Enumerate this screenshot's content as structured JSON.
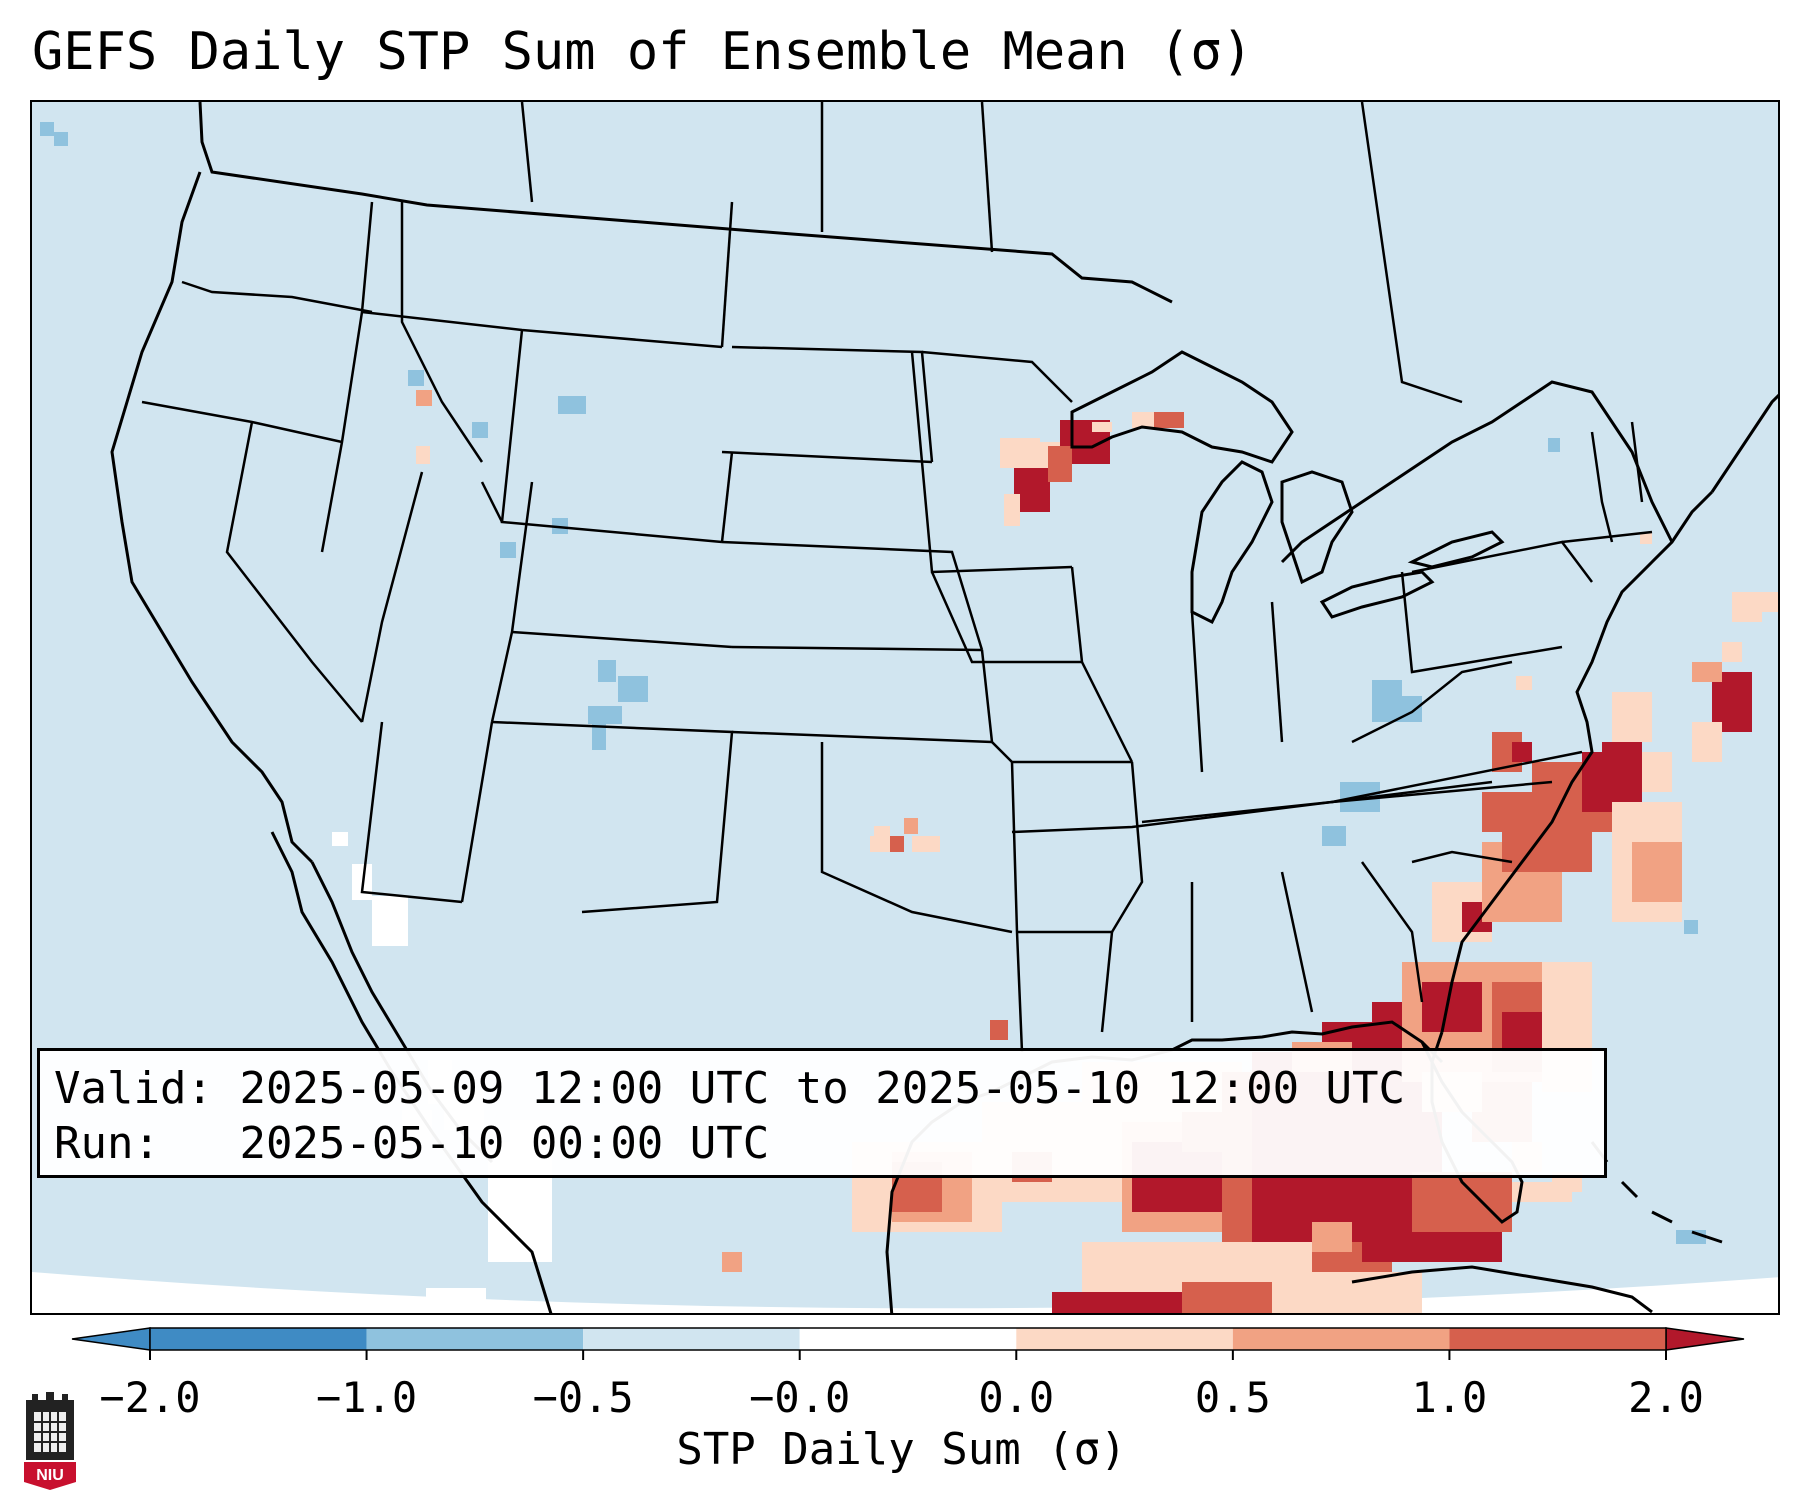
{
  "title": "GEFS Daily STP Sum of Ensemble Mean (σ)",
  "info": {
    "valid_label": "Valid:",
    "valid_value": "2025-05-09 12:00 UTC to 2025-05-10 12:00 UTC",
    "run_label": "Run:",
    "run_value": "2025-05-10 00:00 UTC"
  },
  "colorbar": {
    "label": "STP Daily Sum (σ)",
    "tick_labels": [
      "−2.0",
      "−1.0",
      "−0.5",
      "−0.0",
      "0.0",
      "0.5",
      "1.0",
      "2.0"
    ],
    "colors": [
      "#3f8bc4",
      "#8fc2de",
      "#d1e5f0",
      "#ffffff",
      "#fcd9c5",
      "#f1a283",
      "#d6604d",
      "#b2182b"
    ],
    "extend": "both"
  },
  "map": {
    "projection": "Lambert Conformal",
    "region": "CONUS",
    "background_color": "#d1e5f0",
    "outline_color": "#000000",
    "features": [
      "state boundaries",
      "country boundaries",
      "coastlines",
      "great lakes"
    ],
    "notable_areas": [
      {
        "area": "Gulf of Mexico and northern Gulf coast",
        "category": "> 2.0"
      },
      {
        "area": "Carolinas coast and offshore",
        "category": "1.0 to 2.0"
      },
      {
        "area": "Florida peninsula and offshore",
        "category": "1.0 to 2.0"
      },
      {
        "area": "Lake Superior / northern Wisconsin",
        "category": "> 2.0"
      },
      {
        "area": "Oklahoma",
        "category": "0.0 to 1.0"
      },
      {
        "area": "Colorado and Wyoming",
        "category": "-1.0 to -0.5"
      },
      {
        "area": "Southwest / northwest Mexico",
        "category": "-0.5 to 0.0"
      }
    ]
  },
  "logo": {
    "text": "NIU"
  }
}
